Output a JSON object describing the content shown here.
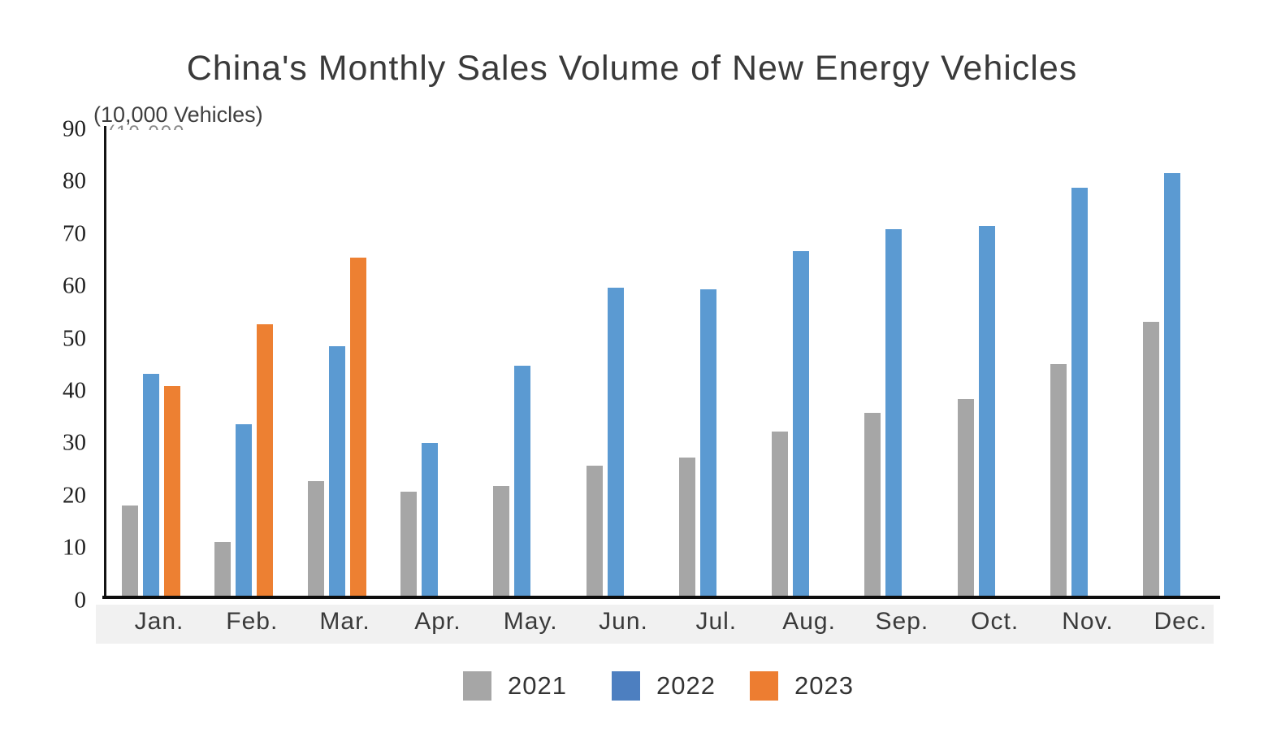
{
  "chart_data": {
    "type": "bar",
    "title": "China's Monthly Sales Volume of New Energy Vehicles",
    "unit_label": "(10,000 Vehicles)",
    "categories": [
      "Jan.",
      "Feb.",
      "Mar.",
      "Apr.",
      "May.",
      "Jun.",
      "Jul.",
      "Aug.",
      "Sep.",
      "Oct.",
      "Nov.",
      "Dec."
    ],
    "series": [
      {
        "name": "2021",
        "color": "#a6a6a6",
        "legend_color": "#a6a6a6",
        "values": [
          17.9,
          11.0,
          22.6,
          20.6,
          21.7,
          25.6,
          27.1,
          32.1,
          35.7,
          38.3,
          45.0,
          53.1
        ]
      },
      {
        "name": "2022",
        "color": "#5b9ad2",
        "legend_color": "#4d7fc0",
        "values": [
          43.1,
          33.4,
          48.4,
          29.9,
          44.7,
          59.6,
          59.3,
          66.6,
          70.8,
          71.4,
          78.6,
          81.4
        ]
      },
      {
        "name": "2023",
        "color": "#ed8032",
        "legend_color": "#ed7d31",
        "values": [
          40.8,
          52.5,
          65.3,
          null,
          null,
          null,
          null,
          null,
          null,
          null,
          null,
          null
        ]
      }
    ],
    "ylabel": "",
    "xlabel": "",
    "ylim": [
      0,
      90
    ],
    "y_ticks": [
      0,
      10,
      20,
      30,
      40,
      50,
      60,
      70,
      80,
      90
    ],
    "grid": false,
    "legend_position": "bottom",
    "colors": {
      "axis": "#0d0d0d",
      "xlabel_strip": "#f1f1f1",
      "title_text": "#3a3a3a",
      "tick_text": "#1f1f1f"
    }
  }
}
